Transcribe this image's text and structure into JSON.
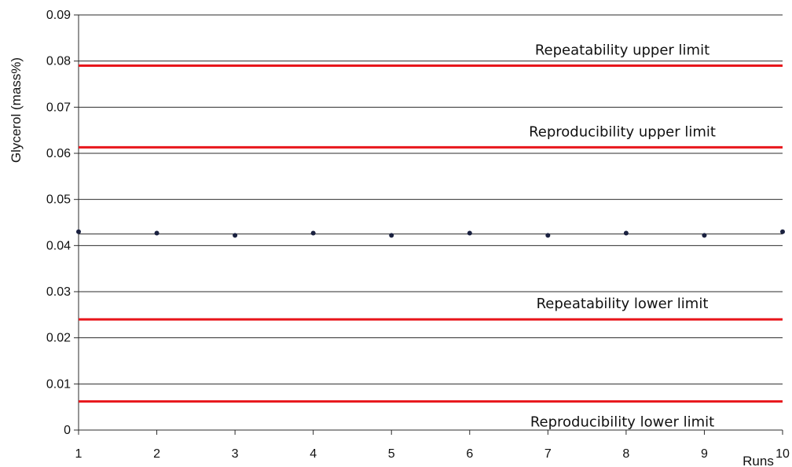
{
  "chart_data": {
    "type": "scatter",
    "title": "",
    "xlabel": "Runs",
    "ylabel": "Glycerol (mass%)",
    "x_ticks": [
      "1",
      "2",
      "3",
      "4",
      "5",
      "6",
      "7",
      "8",
      "9",
      "10"
    ],
    "y_ticks": [
      "0",
      "0.01",
      "0.02",
      "0.03",
      "0.04",
      "0.05",
      "0.06",
      "0.07",
      "0.08",
      "0.09"
    ],
    "xlim": [
      1,
      10
    ],
    "ylim": [
      0,
      0.09
    ],
    "grid": "horizontal",
    "series": [
      {
        "points": [
          {
            "x": 1,
            "y": 0.043
          },
          {
            "x": 2,
            "y": 0.0427
          },
          {
            "x": 3,
            "y": 0.0422
          },
          {
            "x": 4,
            "y": 0.0427
          },
          {
            "x": 5,
            "y": 0.0422
          },
          {
            "x": 6,
            "y": 0.0427
          },
          {
            "x": 7,
            "y": 0.0422
          },
          {
            "x": 8,
            "y": 0.0427
          },
          {
            "x": 9,
            "y": 0.0422
          },
          {
            "x": 10,
            "y": 0.043
          }
        ],
        "color": "#1a2140"
      }
    ],
    "mean_line": 0.0425,
    "limits": [
      {
        "label": "Repeatability upper limit",
        "value": 0.079,
        "color": "#e8161b"
      },
      {
        "label": "Reproducibility upper limit",
        "value": 0.0613,
        "color": "#e8161b"
      },
      {
        "label": "Repeatability lower limit",
        "value": 0.024,
        "color": "#e8161b"
      },
      {
        "label": "Reproducibility lower limit",
        "value": 0.0062,
        "color": "#e8161b"
      }
    ]
  }
}
